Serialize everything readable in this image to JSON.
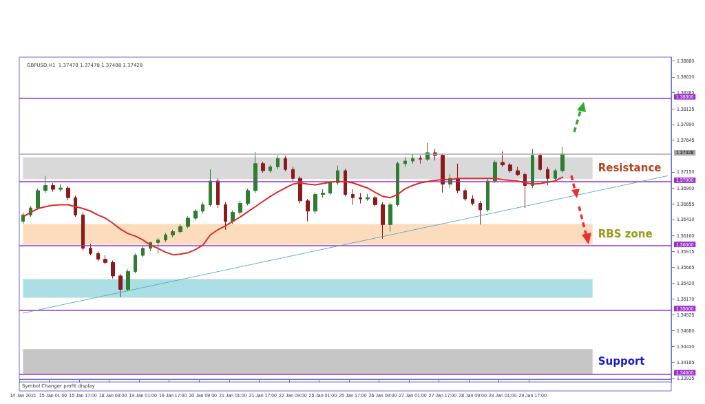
{
  "chart_data": {
    "type": "candlestick",
    "title": "GBPUSD,H1  1.37470 1.37478 1.37408 1.37428",
    "annotations": [
      "Symbol Changer profit display"
    ],
    "categories": [
      "14 Jan 2021",
      null,
      null,
      null,
      "15 Jan 01:00",
      null,
      null,
      null,
      "15 Jan 17:00",
      null,
      null,
      null,
      "18 Jan 09:00",
      null,
      null,
      null,
      "19 Jan 01:00",
      null,
      null,
      null,
      "19 Jan 17:00",
      null,
      null,
      null,
      "20 Jan 09:00",
      null,
      null,
      null,
      "21 Jan 01:00",
      null,
      null,
      null,
      "21 Jan 17:00",
      null,
      null,
      null,
      "22 Jan 09:00",
      null,
      null,
      null,
      "25 Jan 01:00",
      null,
      null,
      null,
      "25 Jan 17:00",
      null,
      null,
      null,
      "26 Jan 09:00",
      null,
      null,
      null,
      "27 Jan 01:00",
      null,
      null,
      null,
      "27 Jan 17:00",
      null,
      null,
      null,
      "28 Jan 09:00",
      null,
      null,
      null,
      "29 Jan 01:00",
      null,
      null,
      null,
      "29 Jan 17:00",
      null,
      null,
      null,
      null,
      null,
      null,
      null,
      null,
      null,
      null,
      null,
      null,
      null,
      null,
      null,
      null,
      null,
      null
    ],
    "ohlc": [
      [
        1.3638,
        1.3652,
        1.3634,
        1.3648
      ],
      [
        1.3648,
        1.3662,
        1.3645,
        1.3659
      ],
      [
        1.3659,
        1.3689,
        1.3656,
        1.3686
      ],
      [
        1.3686,
        1.3709,
        1.3682,
        1.3694
      ],
      [
        1.3694,
        1.3698,
        1.3684,
        1.3688
      ],
      [
        1.3688,
        1.3696,
        1.3684,
        1.369
      ],
      [
        1.369,
        1.3693,
        1.3671,
        1.3675
      ],
      [
        1.3675,
        1.3678,
        1.3645,
        1.3648
      ],
      [
        1.3648,
        1.3652,
        1.3592,
        1.3596
      ],
      [
        1.3596,
        1.3603,
        1.3585,
        1.3588
      ],
      [
        1.3588,
        1.3591,
        1.3576,
        1.3579
      ],
      [
        1.3579,
        1.3585,
        1.3571,
        1.3574
      ],
      [
        1.3574,
        1.3577,
        1.3549,
        1.3553
      ],
      [
        1.3553,
        1.3556,
        1.352,
        1.3532
      ],
      [
        1.3532,
        1.3563,
        1.3529,
        1.356
      ],
      [
        1.356,
        1.3588,
        1.3557,
        1.3585
      ],
      [
        1.3585,
        1.3599,
        1.3582,
        1.3596
      ],
      [
        1.3596,
        1.3606,
        1.3592,
        1.3605
      ],
      [
        1.3605,
        1.3612,
        1.3588,
        1.3609
      ],
      [
        1.3609,
        1.362,
        1.3606,
        1.3617
      ],
      [
        1.3617,
        1.3625,
        1.3613,
        1.3622
      ],
      [
        1.3622,
        1.3634,
        1.3619,
        1.363
      ],
      [
        1.363,
        1.3646,
        1.3627,
        1.3643
      ],
      [
        1.3643,
        1.3657,
        1.364,
        1.3654
      ],
      [
        1.3654,
        1.3668,
        1.365,
        1.3664
      ],
      [
        1.3664,
        1.3719,
        1.3661,
        1.3701
      ],
      [
        1.3701,
        1.3705,
        1.3659,
        1.3664
      ],
      [
        1.3664,
        1.3668,
        1.3625,
        1.3638
      ],
      [
        1.3638,
        1.3655,
        1.3634,
        1.3652
      ],
      [
        1.3652,
        1.367,
        1.3648,
        1.3666
      ],
      [
        1.3666,
        1.3689,
        1.3663,
        1.3686
      ],
      [
        1.3686,
        1.3746,
        1.3682,
        1.3728
      ],
      [
        1.3728,
        1.3731,
        1.3714,
        1.3717
      ],
      [
        1.3717,
        1.3726,
        1.3714,
        1.3723
      ],
      [
        1.3723,
        1.3741,
        1.3719,
        1.3736
      ],
      [
        1.3736,
        1.374,
        1.3716,
        1.3719
      ],
      [
        1.3719,
        1.3723,
        1.3701,
        1.3705
      ],
      [
        1.3705,
        1.3708,
        1.3666,
        1.367
      ],
      [
        1.367,
        1.3673,
        1.3638,
        1.3654
      ],
      [
        1.3654,
        1.3683,
        1.365,
        1.368
      ],
      [
        1.368,
        1.3688,
        1.3675,
        1.3682
      ],
      [
        1.3682,
        1.3701,
        1.3679,
        1.3698
      ],
      [
        1.3698,
        1.3725,
        1.3695,
        1.3717
      ],
      [
        1.3717,
        1.372,
        1.3677,
        1.368
      ],
      [
        1.368,
        1.3688,
        1.3664,
        1.3675
      ],
      [
        1.3675,
        1.3682,
        1.3666,
        1.3673
      ],
      [
        1.3673,
        1.3681,
        1.367,
        1.3675
      ],
      [
        1.3675,
        1.3678,
        1.3661,
        1.3664
      ],
      [
        1.3664,
        1.3668,
        1.3611,
        1.3633
      ],
      [
        1.3633,
        1.3668,
        1.3622,
        1.3664
      ],
      [
        1.3664,
        1.3731,
        1.3661,
        1.3728
      ],
      [
        1.3728,
        1.3738,
        1.3723,
        1.3732
      ],
      [
        1.3732,
        1.3743,
        1.3728,
        1.3736
      ],
      [
        1.3736,
        1.3741,
        1.3728,
        1.3735
      ],
      [
        1.3735,
        1.376,
        1.3732,
        1.3745
      ],
      [
        1.3745,
        1.3751,
        1.3733,
        1.3741
      ],
      [
        1.3741,
        1.3744,
        1.3683,
        1.3696
      ],
      [
        1.3696,
        1.3712,
        1.369,
        1.3705
      ],
      [
        1.3705,
        1.3728,
        1.3682,
        1.3686
      ],
      [
        1.3686,
        1.3689,
        1.367,
        1.3673
      ],
      [
        1.3673,
        1.3679,
        1.3663,
        1.3666
      ],
      [
        1.3666,
        1.367,
        1.3633,
        1.3656
      ],
      [
        1.3656,
        1.3705,
        1.3653,
        1.3701
      ],
      [
        1.3701,
        1.3733,
        1.3698,
        1.373
      ],
      [
        1.373,
        1.3747,
        1.3723,
        1.3726
      ],
      [
        1.3726,
        1.3729,
        1.3714,
        1.3717
      ],
      [
        1.3717,
        1.3723,
        1.3709,
        1.3711
      ],
      [
        1.3711,
        1.3714,
        1.3659,
        1.3694
      ],
      [
        1.3694,
        1.3751,
        1.369,
        1.3741
      ],
      [
        1.3741,
        1.3744,
        1.3716,
        1.3719
      ],
      [
        1.3719,
        1.3723,
        1.3694,
        1.3705
      ],
      [
        1.3705,
        1.372,
        1.3701,
        1.3717
      ],
      [
        1.3717,
        1.3754,
        1.3714,
        1.3743
      ],
      null,
      null,
      null,
      null,
      null,
      null,
      null,
      null,
      null,
      null,
      null,
      null,
      null,
      null
    ],
    "series": [
      {
        "type": "line",
        "color": "#e02828",
        "values": [
          1.3645,
          1.3652,
          1.3658,
          1.3661,
          1.3663,
          1.3664,
          1.3664,
          1.3661,
          1.3658,
          1.3654,
          1.3648,
          1.3643,
          1.3635,
          1.3626,
          1.3619,
          1.3615,
          1.3609,
          1.3601,
          1.3596,
          1.359,
          1.3586,
          1.3587,
          1.3589,
          1.3594,
          1.3601,
          1.3617,
          1.3625,
          1.3631,
          1.3638,
          1.3645,
          1.3653,
          1.3661,
          1.3669,
          1.3677,
          1.3684,
          1.369,
          1.3696,
          1.3698,
          1.3696,
          1.3695,
          1.3697,
          1.3699,
          1.37,
          1.37,
          1.3698,
          1.3694,
          1.369,
          1.3683,
          1.3677,
          1.3675,
          1.368,
          1.3689,
          1.3694,
          1.3698,
          1.37,
          1.3702,
          1.3703,
          1.3703,
          1.3705,
          1.3705,
          1.3705,
          1.3705,
          1.3705,
          1.3705,
          1.3703,
          1.3702,
          1.3701,
          1.3698,
          1.3696,
          1.3697,
          1.3699,
          1.3701,
          1.3707,
          null,
          null,
          null,
          null,
          null,
          null,
          null,
          null,
          null,
          null,
          null,
          null,
          null,
          null
        ]
      },
      {
        "type": "line",
        "color": "#4aa8b8",
        "line_style": "dotted",
        "values": [
          1.3495,
          null,
          null,
          null,
          null,
          null,
          null,
          null,
          null,
          null,
          null,
          null,
          null,
          null,
          null,
          null,
          null,
          null,
          null,
          null,
          null,
          null,
          null,
          null,
          null,
          null,
          null,
          null,
          null,
          null,
          null,
          null,
          null,
          null,
          null,
          null,
          null,
          null,
          null,
          null,
          null,
          null,
          null,
          null,
          null,
          null,
          null,
          null,
          null,
          null,
          null,
          null,
          null,
          null,
          null,
          null,
          null,
          null,
          null,
          null,
          null,
          null,
          null,
          null,
          null,
          null,
          null,
          null,
          null,
          null,
          null,
          null,
          null,
          null,
          null,
          null,
          null,
          null,
          null,
          null,
          null,
          null,
          null,
          null,
          null,
          null,
          1.3709
        ]
      }
    ],
    "ylim": [
      1.3392,
      1.3894
    ],
    "yticks": [
      {
        "value": 1.3888,
        "label": "1.38880"
      },
      {
        "value": 1.3863,
        "label": "1.38630"
      },
      {
        "value": 1.38385,
        "label": "1.38385"
      },
      {
        "value": 1.38135,
        "label": "1.38135"
      },
      {
        "value": 1.3789,
        "label": "1.37890"
      },
      {
        "value": 1.37645,
        "label": "1.37645"
      },
      {
        "value": 1.3715,
        "label": "1.37150"
      },
      {
        "value": 1.369,
        "label": "1.36900"
      },
      {
        "value": 1.36655,
        "label": "1.36655"
      },
      {
        "value": 1.3641,
        "label": "1.36410"
      },
      {
        "value": 1.3616,
        "label": "1.36160"
      },
      {
        "value": 1.35915,
        "label": "1.35915"
      },
      {
        "value": 1.35665,
        "label": "1.35665"
      },
      {
        "value": 1.3542,
        "label": "1.35420"
      },
      {
        "value": 1.3517,
        "label": "1.35170"
      },
      {
        "value": 1.34925,
        "label": "1.34925"
      },
      {
        "value": 1.3468,
        "label": "1.34680"
      },
      {
        "value": 1.3443,
        "label": "1.34430"
      },
      {
        "value": 1.34185,
        "label": "1.34185"
      },
      {
        "value": 1.33935,
        "label": "1.33935"
      }
    ],
    "ref_lines": [
      {
        "axis": "y",
        "value": 1.383,
        "label": "1.38300",
        "color": "#9b30c8"
      },
      {
        "axis": "y",
        "value": 1.37428,
        "label": "1.37428",
        "color": "#a8a8a8"
      },
      {
        "axis": "y",
        "value": 1.37,
        "label": "1.37000",
        "color": "#9b30c8"
      },
      {
        "axis": "y",
        "value": 1.36,
        "label": "1.36000",
        "color": "#9b30c8"
      },
      {
        "axis": "y",
        "value": 1.35,
        "label": "1.35000",
        "color": "#9b30c8"
      },
      {
        "axis": "y",
        "value": 1.34,
        "label": "1.34000",
        "color": "#9b30c8"
      }
    ],
    "bands": [
      {
        "axis": "y",
        "from": 1.3704,
        "to": 1.3738,
        "label": "Resistance",
        "color": "#d9d9d9"
      },
      {
        "axis": "y",
        "from": 1.3602,
        "to": 1.3634,
        "label": "RBS zone",
        "color": "#fcdcbc"
      },
      {
        "axis": "y",
        "from": 1.3519,
        "to": 1.3548,
        "color": "#acdfe3"
      },
      {
        "axis": "y",
        "from": 1.34,
        "to": 1.3439,
        "label": "Support",
        "color": "#c6c6c6"
      }
    ]
  }
}
